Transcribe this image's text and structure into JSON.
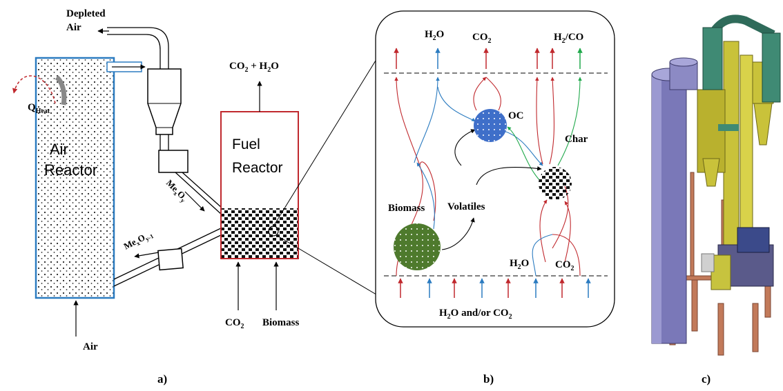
{
  "panel_a": {
    "depleted_air_1": "Depleted",
    "depleted_air_2": "Air",
    "q_main": "Q",
    "q_sub": "Heat",
    "air_reactor_1": "Air",
    "air_reactor_2": "Reactor",
    "air_in": "Air",
    "fuel_reactor_1": "Fuel",
    "fuel_reactor_2": "Reactor",
    "co2_h2o_out": "CO",
    "co2_h2o_out_sub": "2",
    "co2_h2o_out_rest": " + H",
    "co2_h2o_out_sub2": "2",
    "co2_h2o_out_end": "O",
    "mexoy_main": "Me",
    "mexoy_x": "x",
    "mexoy_o": "O",
    "mexoy_y": "y",
    "mexoy1_main": "Me",
    "mexoy1_x": "x",
    "mexoy1_o": "O",
    "mexoy1_y": "y-1",
    "co2_in": "CO",
    "co2_in_sub": "2",
    "biomass_in": "Biomass",
    "caption": "a)"
  },
  "panel_b": {
    "h2o_top_main": "H",
    "h2o_top_sub": "2",
    "h2o_top_end": "O",
    "co2_top_main": "CO",
    "co2_top_sub": "2",
    "h2co_main": "H",
    "h2co_sub": "2",
    "h2co_end": "/CO",
    "oc": "OC",
    "char": "Char",
    "biomass": "Biomass",
    "volatiles": "Volatiles",
    "h2o_low_main": "H",
    "h2o_low_sub": "2",
    "h2o_low_end": "O",
    "co2_low_main": "CO",
    "co2_low_sub": "2",
    "bottom_main": "H",
    "bottom_sub": "2",
    "bottom_mid": "O and/or CO",
    "bottom_sub2": "2",
    "caption": "b)"
  },
  "panel_c": {
    "caption": "c)"
  },
  "colors": {
    "air_reactor": "#2b7bc0",
    "fuel_reactor": "#c0282d",
    "red_flow": "#c0282d",
    "blue_flow": "#2b7bc0",
    "green_flow": "#1fa84a",
    "oc_particle": "#3f6fc9",
    "biomass_particle": "#4e7a2d"
  }
}
